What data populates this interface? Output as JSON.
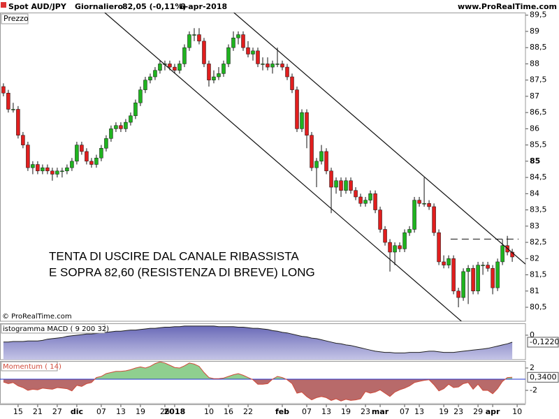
{
  "header": {
    "symbol": "Spot AUD/JPY",
    "period": "Giornaliero",
    "quote": "82,05 (-0,11%)",
    "date": "6-apr-2018",
    "site": "www.ProRealTime.com",
    "copyright": "© ProRealTime.com"
  },
  "chart_data": [
    {
      "type": "candlestick",
      "title": "Prezzo",
      "up_color": "#1fb31f",
      "down_color": "#e01e1e",
      "xlim": [
        -0.7,
        106.7
      ],
      "xticks": [
        {
          "value": 3,
          "label": "15"
        },
        {
          "value": 7,
          "label": "21"
        },
        {
          "value": 11,
          "label": "27"
        },
        {
          "value": 15,
          "label": "dic",
          "bold": true
        },
        {
          "value": 20,
          "label": "07"
        },
        {
          "value": 24,
          "label": "13"
        },
        {
          "value": 28,
          "label": "19"
        },
        {
          "value": 33,
          "label": "26"
        },
        {
          "value": 35,
          "label": "2018",
          "bold": true
        },
        {
          "value": 42,
          "label": "10"
        },
        {
          "value": 46,
          "label": "16"
        },
        {
          "value": 50,
          "label": "22"
        },
        {
          "value": 57,
          "label": "feb",
          "bold": true
        },
        {
          "value": 62,
          "label": "07"
        },
        {
          "value": 66,
          "label": "13"
        },
        {
          "value": 70,
          "label": "19"
        },
        {
          "value": 74,
          "label": "23"
        },
        {
          "value": 77,
          "label": "mar",
          "bold": true
        },
        {
          "value": 82,
          "label": "07"
        },
        {
          "value": 85,
          "label": "13"
        },
        {
          "value": 90,
          "label": "19"
        },
        {
          "value": 93,
          "label": "23"
        },
        {
          "value": 97,
          "label": "29"
        },
        {
          "value": 100,
          "label": "apr",
          "bold": true
        },
        {
          "value": 105,
          "label": "10"
        }
      ],
      "ylim": [
        80.07,
        89.58
      ],
      "yticks": [
        {
          "value": 80.5,
          "label": "80,5"
        },
        81,
        {
          "value": 81.5,
          "label": "81,5"
        },
        82,
        {
          "value": 82.5,
          "label": "82,5"
        },
        83,
        {
          "value": 83.5,
          "label": "83,5"
        },
        84,
        {
          "value": 84.5,
          "label": "84,5"
        },
        {
          "value": 85,
          "label": "85",
          "bold": true
        },
        {
          "value": 85.5,
          "label": "85,5"
        },
        86,
        {
          "value": 86.5,
          "label": "86,5"
        },
        87,
        {
          "value": 87.5,
          "label": "87,5"
        },
        88,
        {
          "value": 88.5,
          "label": "88,5"
        },
        89,
        {
          "value": 89.5,
          "label": "89,5"
        }
      ],
      "open": [
        87.3,
        87.1,
        86.6,
        86.6,
        85.8,
        85.5,
        84.8,
        84.9,
        84.7,
        84.8,
        84.7,
        84.6,
        84.7,
        84.7,
        84.8,
        85.0,
        85.5,
        85.3,
        85.0,
        84.9,
        85.1,
        85.4,
        85.7,
        86.0,
        86.1,
        86.0,
        86.2,
        86.4,
        86.8,
        87.2,
        87.5,
        87.6,
        87.8,
        88.0,
        88.0,
        87.9,
        87.8,
        88.0,
        88.5,
        88.9,
        88.9,
        88.7,
        88.0,
        87.5,
        87.6,
        87.7,
        88.0,
        88.5,
        88.8,
        88.9,
        88.5,
        88.3,
        88.4,
        88.0,
        88.0,
        87.9,
        88.0,
        88.0,
        87.9,
        87.6,
        87.2,
        86.0,
        86.5,
        85.8,
        84.8,
        85.0,
        85.3,
        84.7,
        84.2,
        84.4,
        84.1,
        84.4,
        84.1,
        83.9,
        83.7,
        83.8,
        84.0,
        83.5,
        82.9,
        82.5,
        82.2,
        82.4,
        82.3,
        82.8,
        82.9,
        83.8,
        83.7,
        83.7,
        83.6,
        82.8,
        81.9,
        81.8,
        82.0,
        81.0,
        80.8,
        81.6,
        81.7,
        81.0,
        81.8,
        81.8,
        81.7,
        81.1,
        81.9,
        82.4,
        82.2
      ],
      "high": [
        87.4,
        87.2,
        86.8,
        86.7,
        85.9,
        85.6,
        85.0,
        85.0,
        84.9,
        84.9,
        84.8,
        84.8,
        84.8,
        84.9,
        85.1,
        85.6,
        85.6,
        85.4,
        85.1,
        85.2,
        85.5,
        85.8,
        86.1,
        86.2,
        86.2,
        86.3,
        86.5,
        86.9,
        87.3,
        87.6,
        87.7,
        87.9,
        88.1,
        88.1,
        88.1,
        88.0,
        88.1,
        88.6,
        89.0,
        89.1,
        89.1,
        88.8,
        88.1,
        87.8,
        87.9,
        88.1,
        88.6,
        89.0,
        89.0,
        89.0,
        88.7,
        88.5,
        88.5,
        88.2,
        88.2,
        88.1,
        88.5,
        88.1,
        88.0,
        87.7,
        87.3,
        86.6,
        86.6,
        85.9,
        85.1,
        85.5,
        85.4,
        84.8,
        84.5,
        84.5,
        84.5,
        84.5,
        84.2,
        84.0,
        83.9,
        84.1,
        84.1,
        83.6,
        83.0,
        82.6,
        82.5,
        82.5,
        82.9,
        83.0,
        83.9,
        83.9,
        84.5,
        83.8,
        83.7,
        82.9,
        82.1,
        82.1,
        82.1,
        81.1,
        81.7,
        81.8,
        81.8,
        81.9,
        81.9,
        81.9,
        81.8,
        82.0,
        82.6,
        82.7,
        82.3
      ],
      "low": [
        87.0,
        86.5,
        86.5,
        85.7,
        85.4,
        84.7,
        84.6,
        84.6,
        84.6,
        84.6,
        84.4,
        84.5,
        84.5,
        84.6,
        84.7,
        84.9,
        85.2,
        84.9,
        84.8,
        84.8,
        85.0,
        85.3,
        85.6,
        85.9,
        85.9,
        85.9,
        86.1,
        86.3,
        86.7,
        87.1,
        87.4,
        87.5,
        87.7,
        87.8,
        87.8,
        87.7,
        87.7,
        87.9,
        88.4,
        88.7,
        88.6,
        87.9,
        87.3,
        87.4,
        87.5,
        87.6,
        87.9,
        88.4,
        88.6,
        88.4,
        88.2,
        88.1,
        87.9,
        87.8,
        87.8,
        87.7,
        87.9,
        87.8,
        87.5,
        87.1,
        85.9,
        85.9,
        85.4,
        84.7,
        84.2,
        84.9,
        84.6,
        83.4,
        84.0,
        83.9,
        84.0,
        84.0,
        83.8,
        83.6,
        83.6,
        83.7,
        83.4,
        82.8,
        82.4,
        81.6,
        81.8,
        82.2,
        82.2,
        82.7,
        82.8,
        83.6,
        83.6,
        83.5,
        82.7,
        81.8,
        81.7,
        81.7,
        80.9,
        80.5,
        80.7,
        80.6,
        80.9,
        80.9,
        81.5,
        81.6,
        80.9,
        81.0,
        81.8,
        82.1,
        81.9
      ],
      "close": [
        87.1,
        86.6,
        86.6,
        85.8,
        85.5,
        84.8,
        84.9,
        84.7,
        84.8,
        84.7,
        84.6,
        84.7,
        84.7,
        84.8,
        85.0,
        85.5,
        85.3,
        85.0,
        84.9,
        85.1,
        85.4,
        85.7,
        86.0,
        86.1,
        86.0,
        86.2,
        86.4,
        86.8,
        87.2,
        87.5,
        87.6,
        87.8,
        88.0,
        88.0,
        87.9,
        87.8,
        88.0,
        88.5,
        88.9,
        88.9,
        88.7,
        88.0,
        87.5,
        87.6,
        87.7,
        88.0,
        88.5,
        88.8,
        88.9,
        88.5,
        88.3,
        88.4,
        88.0,
        88.0,
        87.9,
        88.0,
        88.0,
        87.9,
        87.6,
        87.2,
        86.0,
        86.5,
        85.8,
        84.8,
        85.0,
        85.3,
        84.7,
        84.2,
        84.4,
        84.1,
        84.4,
        84.1,
        83.9,
        83.7,
        83.8,
        84.0,
        83.5,
        82.9,
        82.5,
        82.2,
        82.4,
        82.3,
        82.8,
        82.9,
        83.8,
        83.7,
        83.7,
        83.6,
        82.8,
        81.9,
        81.8,
        82.0,
        81.0,
        80.8,
        81.6,
        81.7,
        81.0,
        81.8,
        81.8,
        81.7,
        81.1,
        81.9,
        82.4,
        82.2,
        82.05
      ],
      "lines": [
        {
          "x": [
            47.1,
            106.7
          ],
          "y": [
            89.58,
            81.83
          ]
        },
        {
          "x": [
            20.7,
            93.6
          ],
          "y": [
            89.58,
            80.07
          ]
        }
      ],
      "resistance": {
        "x": [
          91.4,
          105.3
        ],
        "y": 82.6
      },
      "annotation": [
        "TENTA DI USCIRE DAL CANALE RIBASSISTA",
        "E SOPRA 82,60 (RESISTENZA DI BREVE) LONG"
      ]
    },
    {
      "type": "area",
      "title": "istogramma MACD ( 9 200 32)",
      "color": "#7f7fc4",
      "line_color": "#222",
      "ylim": [
        -0.427,
        0.207
      ],
      "yticks": [
        0
      ],
      "values": [
        -0.12,
        -0.12,
        -0.11,
        -0.11,
        -0.11,
        -0.1,
        -0.1,
        -0.1,
        -0.09,
        -0.07,
        -0.06,
        -0.05,
        -0.04,
        -0.02,
        -0.01,
        0.0,
        0.01,
        0.02,
        0.02,
        0.03,
        0.04,
        0.05,
        0.06,
        0.07,
        0.07,
        0.08,
        0.09,
        0.09,
        0.1,
        0.11,
        0.12,
        0.12,
        0.13,
        0.14,
        0.14,
        0.15,
        0.15,
        0.16,
        0.16,
        0.16,
        0.16,
        0.16,
        0.16,
        0.16,
        0.15,
        0.15,
        0.15,
        0.15,
        0.14,
        0.14,
        0.13,
        0.12,
        0.12,
        0.11,
        0.1,
        0.08,
        0.07,
        0.05,
        0.04,
        0.02,
        0.0,
        -0.02,
        -0.03,
        -0.05,
        -0.06,
        -0.08,
        -0.1,
        -0.12,
        -0.14,
        -0.15,
        -0.17,
        -0.18,
        -0.2,
        -0.22,
        -0.24,
        -0.26,
        -0.28,
        -0.29,
        -0.3,
        -0.3,
        -0.31,
        -0.31,
        -0.31,
        -0.3,
        -0.3,
        -0.3,
        -0.29,
        -0.28,
        -0.28,
        -0.29,
        -0.3,
        -0.3,
        -0.3,
        -0.29,
        -0.28,
        -0.27,
        -0.26,
        -0.25,
        -0.24,
        -0.23,
        -0.21,
        -0.19,
        -0.17,
        -0.15,
        -0.122
      ],
      "last_label": "-0,1220"
    },
    {
      "type": "momentum",
      "title": "Momentum ( 14)",
      "up_color": "#8fcf8f",
      "down_color": "#b86a6a",
      "line_color": "#d04a3a",
      "ylim": [
        -4.375,
        3.25
      ],
      "yticks": [
        2,
        -2
      ],
      "values": [
        -0.5,
        -0.8,
        -0.6,
        -1.2,
        -1.5,
        -2.0,
        -1.8,
        -1.9,
        -1.6,
        -1.7,
        -1.8,
        -1.5,
        -1.6,
        -1.7,
        -2.1,
        -1.1,
        -1.3,
        -0.8,
        -0.6,
        0.3,
        0.5,
        1.0,
        1.2,
        1.4,
        1.4,
        1.5,
        1.7,
        2.0,
        2.2,
        2.0,
        2.3,
        2.8,
        3.1,
        2.9,
        2.5,
        2.1,
        2.0,
        2.4,
        2.9,
        2.7,
        2.3,
        1.2,
        0.3,
        0.1,
        0.1,
        0.2,
        0.5,
        0.8,
        1.0,
        0.7,
        0.3,
        -0.1,
        -0.9,
        -0.9,
        -0.8,
        0.0,
        0.5,
        0.3,
        -0.1,
        -0.8,
        -2.5,
        -2.3,
        -3.1,
        -3.7,
        -3.3,
        -3.1,
        -3.3,
        -3.8,
        -3.5,
        -3.9,
        -3.6,
        -3.8,
        -3.7,
        -3.5,
        -2.2,
        -2.5,
        -2.3,
        -1.9,
        -2.5,
        -3.1,
        -2.3,
        -1.9,
        -1.6,
        -1.2,
        -0.6,
        -0.4,
        -0.2,
        -0.1,
        -1.0,
        -2.1,
        -1.7,
        -0.9,
        -1.5,
        -1.4,
        -0.8,
        -0.6,
        -1.8,
        -0.9,
        -2.0,
        -2.0,
        -2.6,
        -1.7,
        -0.4,
        0.3,
        0.34
      ],
      "last_label": "0,3400"
    }
  ]
}
